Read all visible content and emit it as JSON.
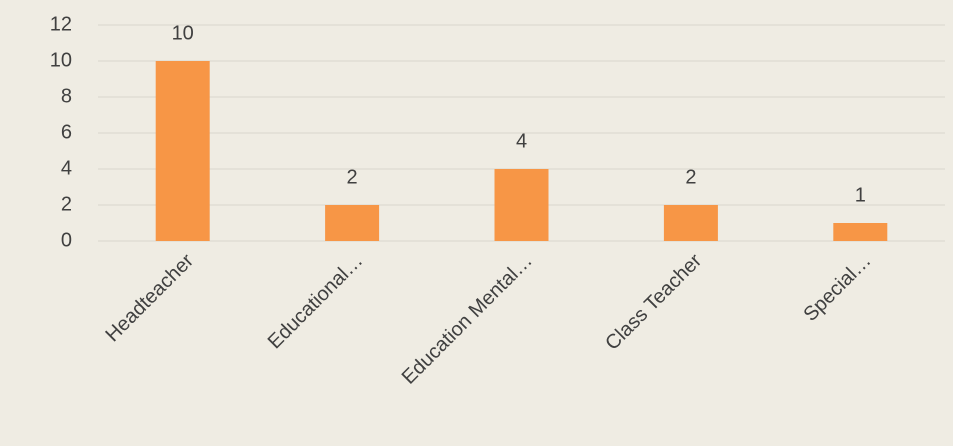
{
  "chart_data": {
    "type": "bar",
    "categories": [
      "Headteacher",
      "Educational…",
      "Education Mental…",
      "Class Teacher",
      "Special…"
    ],
    "values": [
      10,
      2,
      4,
      2,
      1
    ],
    "color": "#f79646",
    "ylim": [
      0,
      12
    ],
    "yticks": [
      0,
      2,
      4,
      6,
      8,
      10,
      12
    ],
    "grid": true
  }
}
